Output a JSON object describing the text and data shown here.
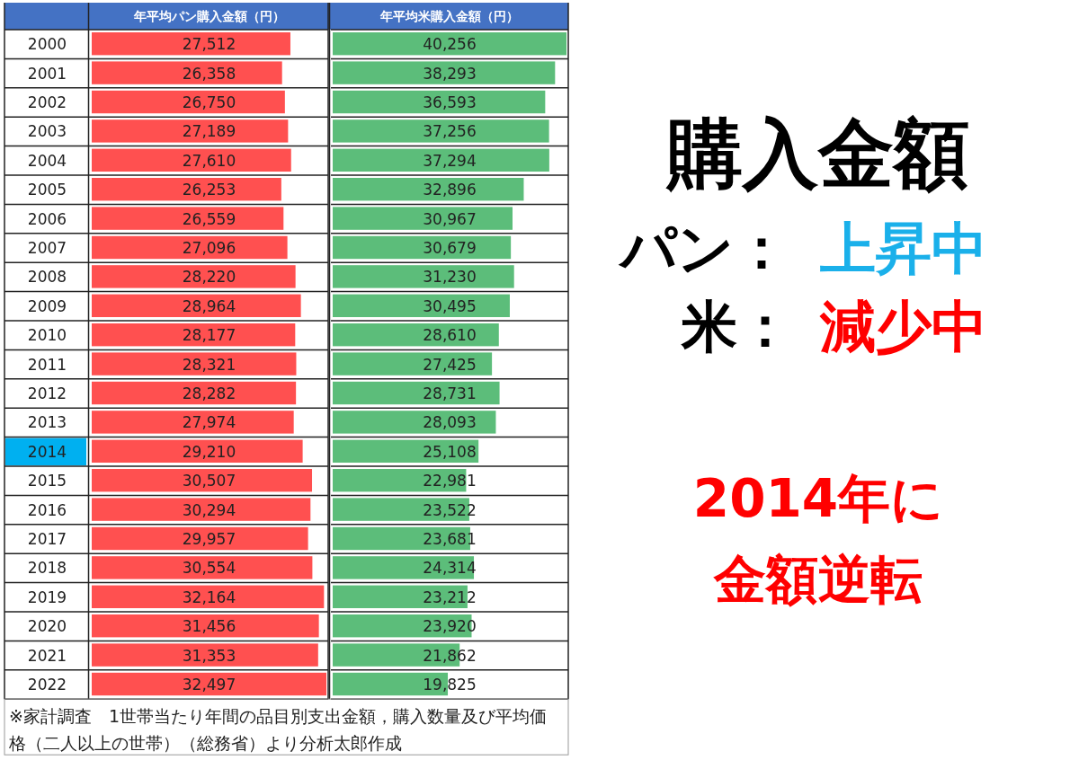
{
  "chart_data": [
    {
      "type": "bar",
      "orientation": "horizontal",
      "title": "年平均パン購入金額（円）",
      "categories": [
        "2000",
        "2001",
        "2002",
        "2003",
        "2004",
        "2005",
        "2006",
        "2007",
        "2008",
        "2009",
        "2010",
        "2011",
        "2012",
        "2013",
        "2014",
        "2015",
        "2016",
        "2017",
        "2018",
        "2019",
        "2020",
        "2021",
        "2022"
      ],
      "values": [
        27512,
        26358,
        26750,
        27189,
        27610,
        26253,
        26559,
        27096,
        28220,
        28964,
        28177,
        28321,
        28282,
        27974,
        29210,
        30507,
        30294,
        29957,
        30554,
        32164,
        31456,
        31353,
        32497
      ],
      "color": "#ff5050",
      "value_labels": [
        "27,512",
        "26,358",
        "26,750",
        "27,189",
        "27,610",
        "26,253",
        "26,559",
        "27,096",
        "28,220",
        "28,964",
        "28,177",
        "28,321",
        "28,282",
        "27,974",
        "29,210",
        "30,507",
        "30,294",
        "29,957",
        "30,554",
        "32,164",
        "31,456",
        "31,353",
        "32,497"
      ]
    },
    {
      "type": "bar",
      "orientation": "horizontal",
      "title": "年平均米購入金額（円）",
      "categories": [
        "2000",
        "2001",
        "2002",
        "2003",
        "2004",
        "2005",
        "2006",
        "2007",
        "2008",
        "2009",
        "2010",
        "2011",
        "2012",
        "2013",
        "2014",
        "2015",
        "2016",
        "2017",
        "2018",
        "2019",
        "2020",
        "2021",
        "2022"
      ],
      "values": [
        40256,
        38293,
        36593,
        37256,
        37294,
        32896,
        30967,
        30679,
        31230,
        30495,
        28610,
        27425,
        28731,
        28093,
        25108,
        22981,
        23522,
        23681,
        24314,
        23212,
        23920,
        21862,
        19825
      ],
      "color": "#5cbd7a",
      "value_labels": [
        "40,256",
        "38,293",
        "36,593",
        "37,256",
        "37,294",
        "32,896",
        "30,967",
        "30,679",
        "31,230",
        "30,495",
        "28,610",
        "27,425",
        "28,731",
        "28,093",
        "25,108",
        "22,981",
        "23,522",
        "23,681",
        "24,314",
        "23,212",
        "23,920",
        "21,862",
        "19,825"
      ],
      "tick_labels": false,
      "annotations": [
        "購入金額",
        "パン：",
        "上昇中",
        "米：",
        "減少中",
        "2014年に",
        "金額逆転",
        "※家計調査　1世帯当たり年間の品目別支出金額，購入数量及び平均価格（二人以上の世帯）（総務省）より分析太郎作成"
      ]
    }
  ]
}
